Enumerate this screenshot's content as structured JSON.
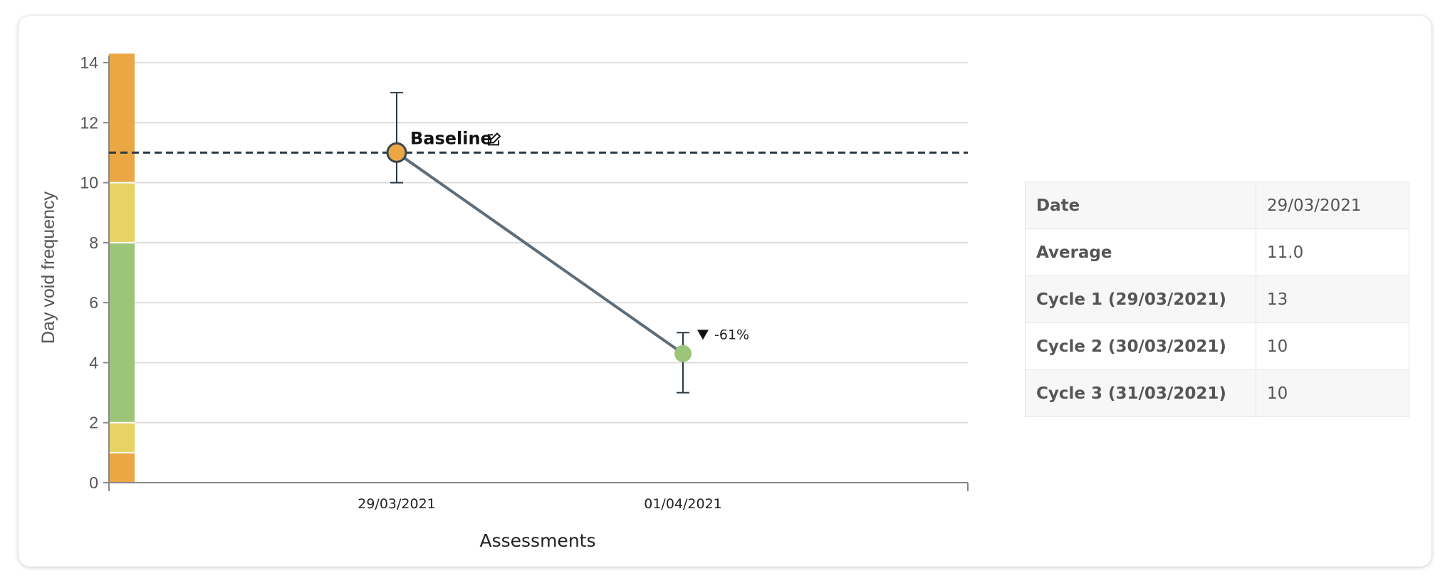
{
  "chart_data": {
    "type": "line",
    "xlabel": "Assessments",
    "ylabel": "Day void frequency",
    "ylim": [
      0,
      14
    ],
    "yticks": [
      0,
      2,
      4,
      6,
      8,
      10,
      12,
      14
    ],
    "grid": true,
    "categories": [
      "29/03/2021",
      "01/04/2021"
    ],
    "points": [
      {
        "x": "29/03/2021",
        "y": 11.0,
        "low": 10,
        "high": 13,
        "color": "#eba743"
      },
      {
        "x": "01/04/2021",
        "y": 4.3,
        "low": 3,
        "high": 5,
        "color": "#9dc57a"
      }
    ],
    "baseline": {
      "value": 11.0,
      "label": "Baseline"
    },
    "change": {
      "label": "-61%",
      "direction": "down"
    },
    "severity_bands": [
      {
        "from": 0,
        "to": 1,
        "color": "#eba743"
      },
      {
        "from": 1,
        "to": 2,
        "color": "#e7d363"
      },
      {
        "from": 2,
        "to": 8,
        "color": "#9dc57a"
      },
      {
        "from": 8,
        "to": 10,
        "color": "#e7d363"
      },
      {
        "from": 10,
        "to": 14.3,
        "color": "#eba743"
      }
    ],
    "colors": {
      "line": "#5e6d78",
      "baseline": "#2a3a47",
      "grid": "#dddddd",
      "axis": "#888888"
    }
  },
  "details": {
    "rows": [
      {
        "label": "Date",
        "value": "29/03/2021"
      },
      {
        "label": "Average",
        "value": "11.0"
      },
      {
        "label": "Cycle 1 (29/03/2021)",
        "value": "13"
      },
      {
        "label": "Cycle 2 (30/03/2021)",
        "value": "10"
      },
      {
        "label": "Cycle 3 (31/03/2021)",
        "value": "10"
      }
    ]
  }
}
